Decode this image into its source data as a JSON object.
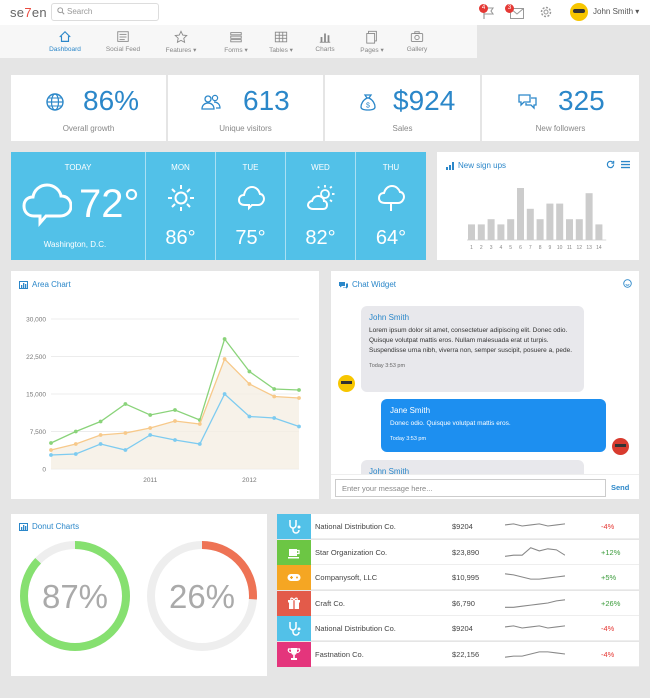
{
  "app": {
    "logo_pre": "se",
    "logo_mid": "7",
    "logo_post": "en",
    "search_placeholder": "Search",
    "flag_count": "4",
    "mail_count": "3",
    "user": "John Smith"
  },
  "nav": [
    {
      "label": "Dashboard",
      "icon": "home-icon"
    },
    {
      "label": "Social Feed",
      "icon": "newspaper-icon"
    },
    {
      "label": "Features ▾",
      "icon": "star-icon"
    },
    {
      "label": "Forms ▾",
      "icon": "form-icon"
    },
    {
      "label": "Tables ▾",
      "icon": "table-icon"
    },
    {
      "label": "Charts",
      "icon": "bar-chart-icon"
    },
    {
      "label": "Pages ▾",
      "icon": "pages-icon"
    },
    {
      "label": "Gallery",
      "icon": "camera-icon"
    }
  ],
  "stats": [
    {
      "value": "86%",
      "label": "Overall growth",
      "icon": "globe-icon"
    },
    {
      "value": "613",
      "label": "Unique visitors",
      "icon": "users-icon"
    },
    {
      "value": "$924",
      "label": "Sales",
      "icon": "money-bag-icon"
    },
    {
      "value": "325",
      "label": "New followers",
      "icon": "chat-icon"
    }
  ],
  "weather": {
    "today_label": "TODAY",
    "today_temp": "72°",
    "location": "Washington, D.C.",
    "days": [
      {
        "day": "MON",
        "temp": "86°",
        "icon": "sun-icon"
      },
      {
        "day": "TUE",
        "temp": "75°",
        "icon": "cloud-icon"
      },
      {
        "day": "WED",
        "temp": "82°",
        "icon": "partly-cloudy-icon"
      },
      {
        "day": "THU",
        "temp": "64°",
        "icon": "rain-cloud-icon"
      }
    ]
  },
  "signups": {
    "title": "New sign ups",
    "labels": [
      "1",
      "2",
      "3",
      "4",
      "5",
      "6",
      "7",
      "8",
      "9",
      "10",
      "11",
      "12",
      "13",
      "14"
    ],
    "values": [
      3,
      3,
      4,
      3,
      4,
      10,
      6,
      4,
      7,
      7,
      4,
      4,
      9,
      3
    ]
  },
  "area_chart": {
    "title": "Area Chart"
  },
  "chart_data": {
    "type": "line",
    "x_labels": [
      "2011",
      "2012"
    ],
    "ylim": [
      0,
      30000
    ],
    "yticks": [
      "0",
      "7,500",
      "15,000",
      "22,500",
      "30,000"
    ],
    "series": [
      {
        "color": "#8ad37a",
        "values": [
          5200,
          7500,
          9500,
          13000,
          10800,
          11800,
          9800,
          26000,
          19500,
          16000,
          15800
        ]
      },
      {
        "color": "#f7c98a",
        "values": [
          3800,
          5000,
          6800,
          7200,
          8200,
          9600,
          9000,
          22000,
          17000,
          14500,
          14200
        ]
      },
      {
        "color": "#7dcbf0",
        "values": [
          2800,
          3000,
          5000,
          3800,
          6800,
          5800,
          5000,
          15000,
          10500,
          10200,
          8500
        ]
      }
    ]
  },
  "chat": {
    "title": "Chat Widget",
    "msg1": {
      "name": "John Smith",
      "text": "Lorem ipsum dolor sit amet, consectetuer adipiscing elit. Donec odio. Quisque volutpat mattis eros. Nullam malesuada erat ut turpis. Suspendisse urna nibh, viverra non, semper suscipit, posuere a, pede.",
      "time": "Today 3:53 pm"
    },
    "msg2": {
      "name": "Jane Smith",
      "text": "Donec odio. Quisque volutpat mattis eros.",
      "time": "Today 3:53 pm"
    },
    "msg3_name": "John Smith",
    "input_placeholder": "Enter your message here...",
    "send": "Send"
  },
  "donut": {
    "title": "Donut Charts",
    "a": "87%",
    "a_val": 0.87,
    "b": "26%",
    "b_val": 0.26
  },
  "table": [
    {
      "name": "National Distribution Co.",
      "price": "$9204",
      "pct": "-4%",
      "color": "#52c1e8",
      "icon": "stethoscope-icon"
    },
    {
      "name": "Star Organization Co.",
      "price": "$23,890",
      "pct": "+12%",
      "color": "#6cc644",
      "icon": "coffee-icon"
    },
    {
      "name": "Companysoft, LLC",
      "price": "$10,995",
      "pct": "+5%",
      "color": "#f5a623",
      "icon": "gamepad-icon"
    },
    {
      "name": "Craft Co.",
      "price": "$6,790",
      "pct": "+26%",
      "color": "#e35b4a",
      "icon": "gift-icon"
    },
    {
      "name": "National Distribution Co.",
      "price": "$9204",
      "pct": "-4%",
      "color": "#52c1e8",
      "icon": "stethoscope-icon"
    },
    {
      "name": "Fastnation Co.",
      "price": "$22,156",
      "pct": "-4%",
      "color": "#e4357c",
      "icon": "trophy-icon"
    }
  ]
}
